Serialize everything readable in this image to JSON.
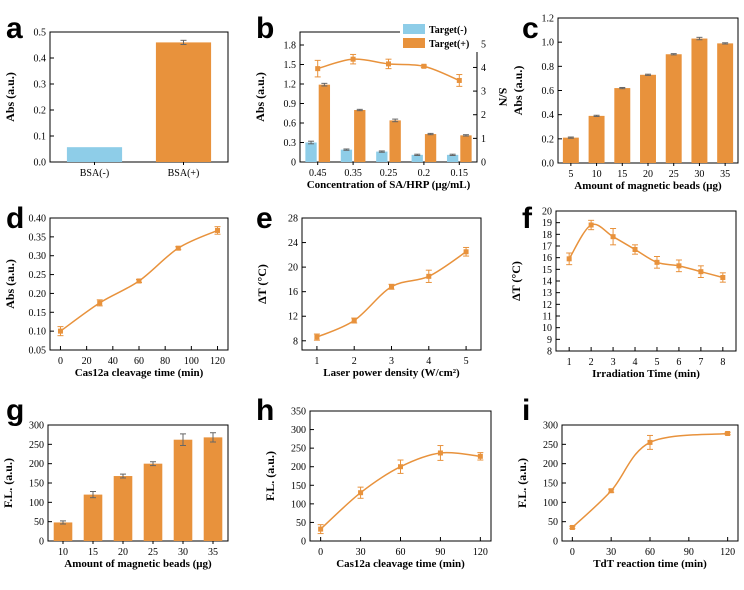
{
  "colors": {
    "orange": "#E8923C",
    "blue": "#8ECDE8",
    "line": "#E8923C",
    "axis": "#000000"
  },
  "chart_data": [
    {
      "id": "a",
      "panel_label": "a",
      "type": "bar",
      "categories": [
        "BSA(-)",
        "BSA(+)"
      ],
      "values": [
        0.057,
        0.46
      ],
      "errors": [
        0,
        0.008
      ],
      "bar_colors": [
        "blue",
        "orange"
      ],
      "xlabel": "",
      "ylabel": "Abs (a.u.)",
      "ylim": [
        0,
        0.5
      ],
      "yticks": [
        0,
        0.1,
        0.2,
        0.3,
        0.4,
        0.5
      ],
      "ytick_labels": [
        "0.0",
        "0.1",
        "0.2",
        "0.3",
        "0.4",
        "0.5"
      ]
    },
    {
      "id": "b",
      "panel_label": "b",
      "type": "bar",
      "categories": [
        "0.45",
        "0.35",
        "0.25",
        "0.2",
        "0.15"
      ],
      "series": [
        {
          "name": "Target(-)",
          "values": [
            0.3,
            0.19,
            0.16,
            0.11,
            0.11
          ],
          "errors": [
            0.02,
            0.01,
            0.01,
            0.01,
            0.01
          ],
          "color": "blue"
        },
        {
          "name": "Target(+)",
          "values": [
            1.19,
            0.8,
            0.64,
            0.43,
            0.41
          ],
          "errors": [
            0.02,
            0.01,
            0.02,
            0.01,
            0.01
          ],
          "color": "orange"
        }
      ],
      "line_series": {
        "name": "S/N",
        "values": [
          3.95,
          4.35,
          4.15,
          4.05,
          3.45
        ],
        "errors": [
          0.35,
          0.2,
          0.2,
          0.05,
          0.25
        ]
      },
      "xlabel": "Concentration of SA/HRP (μg/mL)",
      "ylabel": "Abs (a.u.)",
      "y2label": "S/N",
      "ylim": [
        0,
        2.0
      ],
      "yticks": [
        0,
        0.3,
        0.6,
        0.9,
        1.2,
        1.5,
        1.8
      ],
      "ytick_labels": [
        "0",
        "0.3",
        "0.6",
        "0.9",
        "1.2",
        "1.5",
        "1.8"
      ],
      "y2lim": [
        0,
        5.5
      ],
      "y2ticks": [
        0,
        1,
        2,
        3,
        4,
        5
      ],
      "y2tick_labels": [
        "0",
        "1",
        "2",
        "3",
        "4",
        "5"
      ],
      "legend": [
        "Target(-)",
        "Target(+)"
      ],
      "legend_position": "top-right"
    },
    {
      "id": "c",
      "panel_label": "c",
      "type": "bar",
      "categories": [
        "5",
        "10",
        "15",
        "20",
        "25",
        "30",
        "35"
      ],
      "values": [
        0.21,
        0.39,
        0.62,
        0.73,
        0.9,
        1.03,
        0.99
      ],
      "errors": [
        0.005,
        0.005,
        0.005,
        0.005,
        0.005,
        0.01,
        0.005
      ],
      "xlabel": "Amount of magnetic beads (μg)",
      "ylabel": "Abs (a.u.)",
      "ylim": [
        0,
        1.2
      ],
      "yticks": [
        0,
        0.2,
        0.4,
        0.6,
        0.8,
        1.0,
        1.2
      ],
      "ytick_labels": [
        "0.0",
        "0.2",
        "0.4",
        "0.6",
        "0.8",
        "1.0",
        "1.2"
      ]
    },
    {
      "id": "d",
      "panel_label": "d",
      "type": "line",
      "x": [
        0,
        30,
        60,
        90,
        120
      ],
      "y": [
        0.1,
        0.175,
        0.233,
        0.32,
        0.367
      ],
      "errors": [
        0.012,
        0.008,
        0.004,
        0.004,
        0.01
      ],
      "xlabel": "Cas12a cleavage time (min)",
      "ylabel": "Abs (a.u.)",
      "xlim": [
        -8,
        128
      ],
      "xticks": [
        0,
        20,
        40,
        60,
        80,
        100,
        120
      ],
      "xtick_labels": [
        "0",
        "20",
        "40",
        "60",
        "80",
        "100",
        "120"
      ],
      "ylim": [
        0.05,
        0.4
      ],
      "yticks": [
        0.05,
        0.1,
        0.15,
        0.2,
        0.25,
        0.3,
        0.35,
        0.4
      ],
      "ytick_labels": [
        "0.05",
        "0.10",
        "0.15",
        "0.20",
        "0.25",
        "0.30",
        "0.35",
        "0.40"
      ]
    },
    {
      "id": "e",
      "panel_label": "e",
      "type": "line",
      "x": [
        1,
        2,
        3,
        4,
        5
      ],
      "y": [
        8.6,
        11.3,
        16.8,
        18.5,
        22.5
      ],
      "errors": [
        0.5,
        0.4,
        0.4,
        1.0,
        0.7
      ],
      "xlabel": "Laser power density (W/cm²)",
      "ylabel": "ΔT (°C)",
      "xlim": [
        0.6,
        5.4
      ],
      "xticks": [
        1,
        2,
        3,
        4,
        5
      ],
      "xtick_labels": [
        "1",
        "2",
        "3",
        "4",
        "5"
      ],
      "ylim": [
        6.5,
        28
      ],
      "yticks": [
        8,
        12,
        16,
        20,
        24,
        28
      ],
      "ytick_labels": [
        "8",
        "12",
        "16",
        "20",
        "24",
        "28"
      ]
    },
    {
      "id": "f",
      "panel_label": "f",
      "type": "line",
      "x": [
        1,
        2,
        3,
        4,
        5,
        6,
        7,
        8
      ],
      "y": [
        15.9,
        18.8,
        17.8,
        16.7,
        15.6,
        15.3,
        14.8,
        14.3
      ],
      "errors": [
        0.5,
        0.4,
        0.7,
        0.4,
        0.5,
        0.5,
        0.5,
        0.4
      ],
      "xlabel": "Irradiation Time (min)",
      "ylabel": "ΔT (°C)",
      "xlim": [
        0.4,
        8.6
      ],
      "xticks": [
        1,
        2,
        3,
        4,
        5,
        6,
        7,
        8
      ],
      "xtick_labels": [
        "1",
        "2",
        "3",
        "4",
        "5",
        "6",
        "7",
        "8"
      ],
      "ylim": [
        8,
        20
      ],
      "yticks": [
        8,
        9,
        10,
        11,
        12,
        13,
        14,
        15,
        16,
        17,
        18,
        19,
        20
      ],
      "ytick_labels": [
        "8",
        "9",
        "10",
        "11",
        "12",
        "13",
        "14",
        "15",
        "16",
        "17",
        "18",
        "19",
        "20"
      ]
    },
    {
      "id": "g",
      "panel_label": "g",
      "type": "bar",
      "categories": [
        "10",
        "15",
        "20",
        "25",
        "30",
        "35"
      ],
      "values": [
        48,
        120,
        168,
        200,
        262,
        268
      ],
      "errors": [
        4,
        8,
        5,
        5,
        15,
        12
      ],
      "xlabel": "Amount of magnetic beads (μg)",
      "ylabel": "F.L. (a.u.)",
      "ylim": [
        0,
        300
      ],
      "yticks": [
        0,
        50,
        100,
        150,
        200,
        250,
        300
      ],
      "ytick_labels": [
        "0",
        "50",
        "100",
        "150",
        "200",
        "250",
        "300"
      ]
    },
    {
      "id": "h",
      "panel_label": "h",
      "type": "line",
      "x": [
        0,
        30,
        60,
        90,
        120
      ],
      "y": [
        32,
        130,
        200,
        237,
        228
      ],
      "errors": [
        12,
        15,
        18,
        20,
        10
      ],
      "xlabel": "Cas12a cleavage time  (min)",
      "ylabel": "F.L. (a.u.)",
      "xlim": [
        -8,
        128
      ],
      "xticks": [
        0,
        30,
        60,
        90,
        120
      ],
      "xtick_labels": [
        "0",
        "30",
        "60",
        "90",
        "120"
      ],
      "ylim": [
        0,
        350
      ],
      "yticks": [
        0,
        50,
        100,
        150,
        200,
        250,
        300,
        350
      ],
      "ytick_labels": [
        "0",
        "50",
        "100",
        "150",
        "200",
        "250",
        "300",
        "350"
      ]
    },
    {
      "id": "i",
      "panel_label": "i",
      "type": "line",
      "x": [
        0,
        30,
        60,
        120
      ],
      "y": [
        35,
        130,
        255,
        278
      ],
      "errors": [
        3,
        4,
        18,
        3
      ],
      "xlabel": "TdT reaction time (min)",
      "ylabel": "F.L. (a.u.)",
      "xlim": [
        -8,
        128
      ],
      "xticks": [
        0,
        30,
        60,
        90,
        120
      ],
      "xtick_labels": [
        "0",
        "30",
        "60",
        "90",
        "120"
      ],
      "ylim": [
        0,
        300
      ],
      "yticks": [
        0,
        50,
        100,
        150,
        200,
        250,
        300
      ],
      "ytick_labels": [
        "0",
        "50",
        "100",
        "150",
        "200",
        "250",
        "300"
      ]
    }
  ]
}
